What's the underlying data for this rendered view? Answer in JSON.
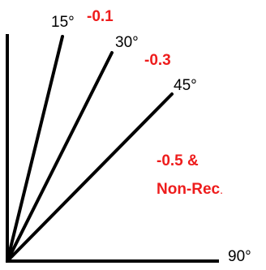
{
  "colors": {
    "lines": "#000000",
    "labels": "#000000",
    "highlight": "#ee1c1c"
  },
  "angle_labels": {
    "deg15": "15°",
    "deg30": "30°",
    "deg45": "45°",
    "deg90": "90°"
  },
  "value_labels": {
    "v15": "-0.1",
    "v30": "-0.3",
    "v45_line1": "-0.5 &",
    "v45_line2": "Non-Rec",
    "v45_period": "."
  }
}
